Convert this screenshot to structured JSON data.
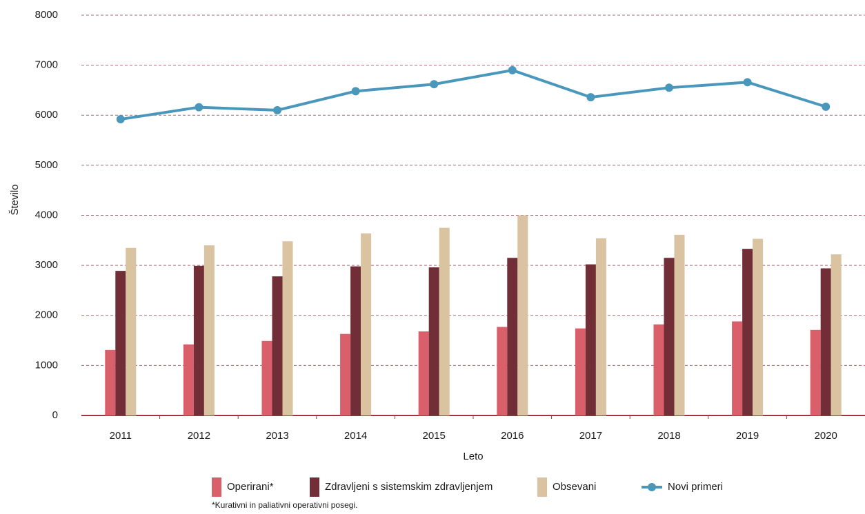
{
  "chart_data": {
    "type": "bar",
    "x_label": "Leto",
    "y_label": "Število",
    "categories": [
      "2011",
      "2012",
      "2013",
      "2014",
      "2015",
      "2016",
      "2017",
      "2018",
      "2019",
      "2020"
    ],
    "series": [
      {
        "name": "Operirani*",
        "type": "bar",
        "color": "#d95f6a",
        "values": [
          1310,
          1420,
          1490,
          1630,
          1680,
          1770,
          1740,
          1820,
          1880,
          1710
        ]
      },
      {
        "name": "Zdravljeni s sistemskim zdravljenjem",
        "type": "bar",
        "color": "#722e37",
        "values": [
          2890,
          2990,
          2780,
          2980,
          2960,
          3150,
          3020,
          3150,
          3330,
          2940
        ]
      },
      {
        "name": "Obsevani",
        "type": "bar",
        "color": "#d9c3a0",
        "values": [
          3350,
          3400,
          3480,
          3640,
          3750,
          4000,
          3540,
          3610,
          3530,
          3220
        ]
      },
      {
        "name": "Novi primeri",
        "type": "line",
        "color": "#4a97bc",
        "values": [
          5920,
          6160,
          6100,
          6480,
          6620,
          6900,
          6360,
          6550,
          6660,
          6170
        ]
      }
    ],
    "ylim": [
      0,
      8000
    ],
    "yticks": [
      0,
      1000,
      2000,
      3000,
      4000,
      5000,
      6000,
      7000,
      8000
    ],
    "grid": true,
    "footnote": "*Kurativni in paliativni operativni posegi."
  }
}
